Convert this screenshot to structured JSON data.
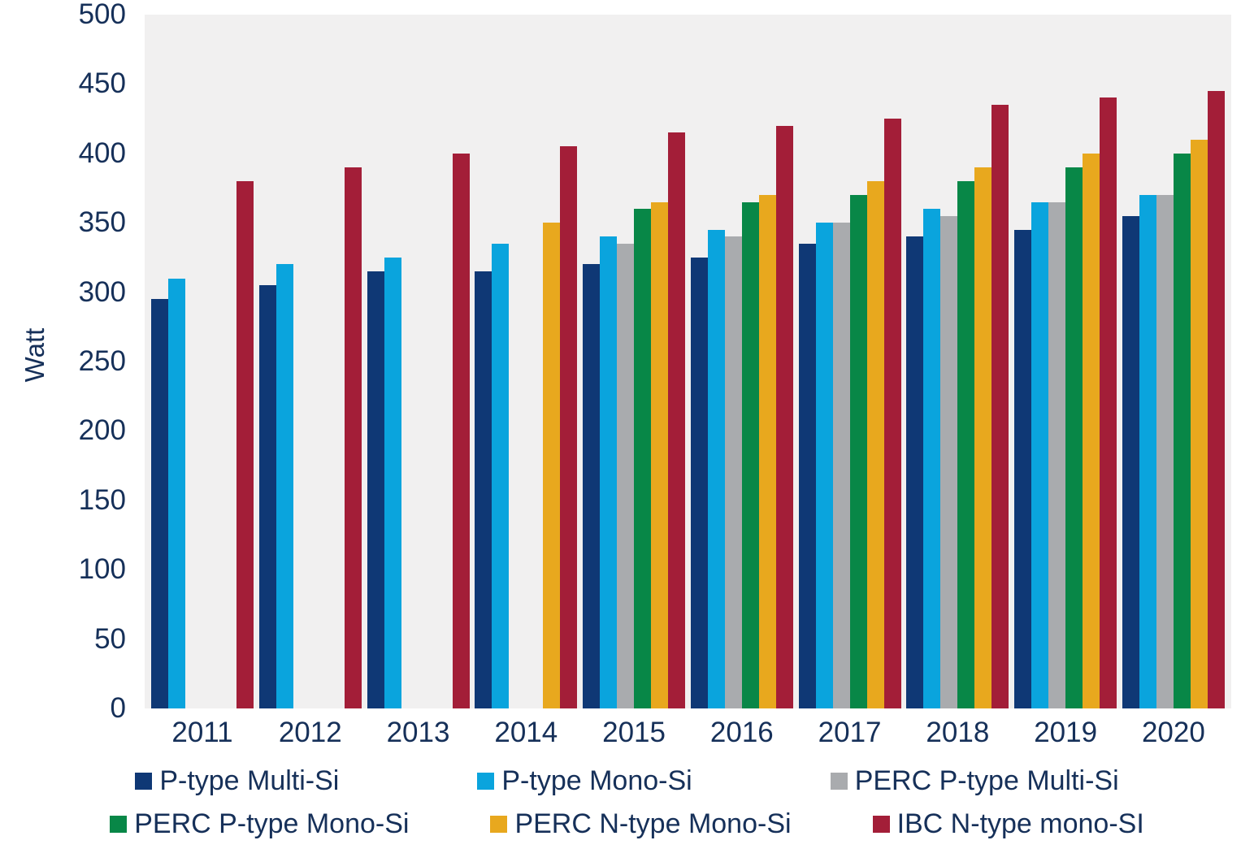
{
  "chart_data": {
    "type": "bar",
    "title": "",
    "xlabel": "",
    "ylabel": "Watt",
    "ylim": [
      0,
      500
    ],
    "ytick_step": 50,
    "yticks": [
      0,
      50,
      100,
      150,
      200,
      250,
      300,
      350,
      400,
      450,
      500
    ],
    "grid": false,
    "plot_background": "#F1F0F0",
    "axis_text_color": "#163059",
    "legend_position": "bottom",
    "categories": [
      "2011",
      "2012",
      "2013",
      "2014",
      "2015",
      "2016",
      "2017",
      "2018",
      "2019",
      "2020"
    ],
    "series": [
      {
        "name": "P-type Multi-Si",
        "color": "#0F3875",
        "values": [
          295,
          305,
          315,
          315,
          320,
          325,
          335,
          340,
          345,
          355
        ]
      },
      {
        "name": "P-type Mono-Si",
        "color": "#0AA4DD",
        "values": [
          310,
          320,
          325,
          335,
          340,
          345,
          350,
          360,
          365,
          370
        ]
      },
      {
        "name": "PERC P-type Multi-Si",
        "color": "#A9ABAE",
        "values": [
          null,
          null,
          null,
          null,
          335,
          340,
          350,
          355,
          365,
          370
        ]
      },
      {
        "name": "PERC P-type Mono-Si",
        "color": "#088747",
        "values": [
          null,
          null,
          null,
          null,
          360,
          365,
          370,
          380,
          390,
          400
        ]
      },
      {
        "name": "PERC N-type Mono-Si",
        "color": "#E8A81E",
        "values": [
          null,
          null,
          null,
          350,
          365,
          370,
          380,
          390,
          400,
          410
        ]
      },
      {
        "name": "IBC N-type mono-SI",
        "color": "#A31E38",
        "values": [
          380,
          390,
          400,
          405,
          415,
          420,
          425,
          435,
          440,
          445
        ]
      }
    ]
  }
}
